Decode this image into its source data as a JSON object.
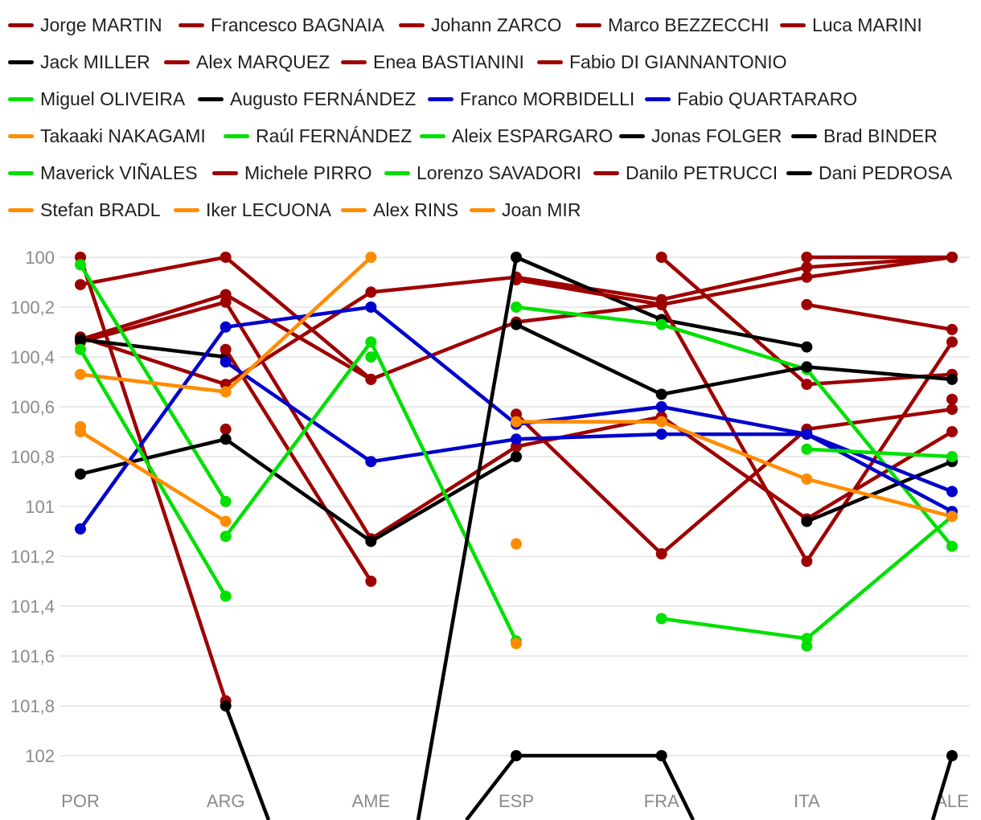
{
  "chart_data": {
    "type": "line",
    "categories": [
      "POR",
      "ARG",
      "AME",
      "ESP",
      "FRA",
      "ITA",
      "ALE"
    ],
    "ylim": [
      100,
      102.1
    ],
    "y_reversed": true,
    "yticks": [
      100,
      100.2,
      100.4,
      100.6,
      100.8,
      101,
      101.2,
      101.4,
      101.6,
      101.8,
      102
    ],
    "ytick_labels": [
      "100",
      "100,2",
      "100,4",
      "100,6",
      "100,8",
      "101",
      "101,2",
      "101,4",
      "101,6",
      "101,8",
      "102"
    ],
    "title": "",
    "xlabel": "",
    "ylabel": "",
    "grid": true,
    "legend_position": "top",
    "series": [
      {
        "name": "Jorge MARTIN",
        "color": "#9e0000",
        "values": [
          100.11,
          100,
          100.49,
          100.26,
          100.19,
          100.08,
          100
        ]
      },
      {
        "name": "Francesco BAGNAIA",
        "color": "#9e0000",
        "values": [
          100.33,
          100.15,
          100.49,
          null,
          100,
          100.51,
          100.47
        ]
      },
      {
        "name": "Johann ZARCO",
        "color": "#9e0000",
        "values": [
          100.34,
          100.18,
          101.13,
          100.76,
          100.64,
          101.05,
          100.7
        ]
      },
      {
        "name": "Marco BEZZECCHI",
        "color": "#9e0000",
        "values": [
          100.32,
          100.51,
          100.14,
          100.08,
          100.17,
          100.04,
          100
        ]
      },
      {
        "name": "Luca MARINI",
        "color": "#9e0000",
        "values": [
          100,
          101.78,
          null,
          100.63,
          101.19,
          100.69,
          100.61
        ]
      },
      {
        "name": "Jack MILLER",
        "color": "#000000",
        "values": [
          100.33,
          100.4,
          null,
          100,
          100.25,
          100.36,
          null
        ]
      },
      {
        "name": "Alex MARQUEZ",
        "color": "#9e0000",
        "values": [
          null,
          100.37,
          101.3,
          null,
          null,
          100.19,
          100.29
        ]
      },
      {
        "name": "Enea BASTIANINI",
        "color": "#9e0000",
        "values": [
          null,
          100.69,
          null,
          100.76,
          null,
          100,
          100
        ]
      },
      {
        "name": "Fabio DI GIANNANTONIO",
        "color": "#9e0000",
        "values": [
          null,
          null,
          null,
          100.09,
          100.19,
          101.22,
          100.34
        ]
      },
      {
        "name": "Miguel OLIVEIRA",
        "color": "#00e000",
        "values": [
          100.03,
          100.98,
          null,
          100.2,
          100.27,
          100.45,
          101.16
        ]
      },
      {
        "name": "Augusto FERNÁNDEZ",
        "color": "#000000",
        "values": [
          100.87,
          100.73,
          101.14,
          100.8,
          null,
          101.06,
          100.82
        ]
      },
      {
        "name": "Franco MORBIDELLI",
        "color": "#0000cc",
        "values": [
          101.09,
          100.28,
          100.2,
          100.67,
          100.6,
          100.71,
          101.02
        ]
      },
      {
        "name": "Fabio QUARTARARO",
        "color": "#0000cc",
        "values": [
          null,
          100.42,
          100.82,
          100.73,
          100.71,
          100.71,
          100.94
        ]
      },
      {
        "name": "Takaaki NAKAGAMI",
        "color": "#ff8c00",
        "values": [
          100.47,
          100.54,
          100,
          null,
          null,
          null,
          null
        ]
      },
      {
        "name": "Raúl FERNÁNDEZ",
        "color": "#00e000",
        "values": [
          100.37,
          101.36,
          null,
          null,
          101.45,
          101.53,
          101.04
        ]
      },
      {
        "name": "Aleix ESPARGARO",
        "color": "#00e000",
        "values": [
          null,
          101.12,
          100.34,
          101.54,
          null,
          100.77,
          100.8
        ]
      },
      {
        "name": "Jonas FOLGER",
        "color": "#000000",
        "values": [
          null,
          101.8,
          null,
          100.27,
          100.55,
          100.44,
          100.49
        ]
      },
      {
        "name": "Brad BINDER",
        "color": "#000000",
        "values": [
          null,
          null,
          null,
          102,
          102,
          null,
          102
        ]
      },
      {
        "name": "Maverick VIÑALES",
        "color": "#00e000",
        "values": [
          null,
          null,
          100.4,
          null,
          null,
          101.56,
          null
        ]
      },
      {
        "name": "Michele PIRRO",
        "color": "#9e0000",
        "values": [
          null,
          null,
          null,
          null,
          null,
          null,
          100.57
        ]
      },
      {
        "name": "Lorenzo SAVADORI",
        "color": "#00e000",
        "values": [
          null,
          null,
          null,
          null,
          null,
          null,
          null
        ]
      },
      {
        "name": "Danilo PETRUCCI",
        "color": "#9e0000",
        "values": [
          null,
          null,
          null,
          null,
          null,
          null,
          null
        ]
      },
      {
        "name": "Dani PEDROSA",
        "color": "#000000",
        "values": [
          null,
          null,
          null,
          null,
          null,
          null,
          null
        ]
      },
      {
        "name": "Stefan BRADL",
        "color": "#ff8c00",
        "values": [
          100.68,
          null,
          null,
          101.15,
          null,
          null,
          null
        ]
      },
      {
        "name": "Iker LECUONA",
        "color": "#ff8c00",
        "values": [
          100.7,
          101.06,
          null,
          100.66,
          100.66,
          100.89,
          101.04
        ]
      },
      {
        "name": "Alex RINS",
        "color": "#ff8c00",
        "values": [
          null,
          null,
          null,
          101.55,
          null,
          null,
          null
        ]
      },
      {
        "name": "Joan MIR",
        "color": "#ff8c00",
        "values": [
          null,
          null,
          null,
          null,
          null,
          null,
          null
        ]
      }
    ],
    "offscale_segments": [
      {
        "name": "Jack MILLER",
        "note": "line continues below plot area between ARG and ESP"
      },
      {
        "name": "Brad BINDER",
        "note": "lines leave plot area after FRA and before ESP"
      }
    ]
  }
}
